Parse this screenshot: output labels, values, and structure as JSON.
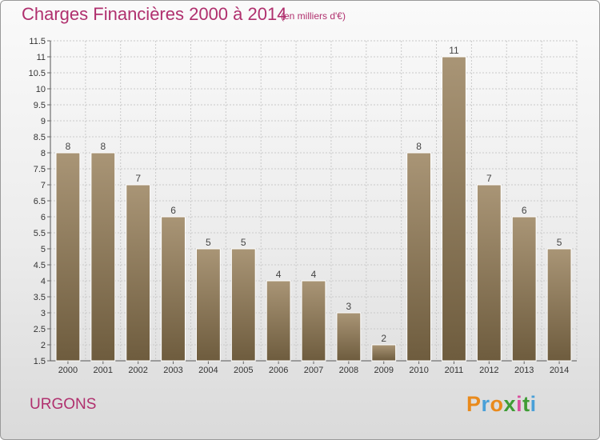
{
  "header": {
    "title": "Charges Financières 2000 à 2014",
    "subtitle": "(en milliers d'€)"
  },
  "footer": {
    "place": "URGONS",
    "logo_text": "Proxiti",
    "logo_colors": [
      "#e98a1c",
      "#4aa0d8",
      "#e98a1c",
      "#3f9c35",
      "#d94f9e",
      "#3f9c35",
      "#4aa0d8"
    ]
  },
  "colors": {
    "bar_top": "#a99576",
    "bar_bottom": "#6e5c3e",
    "grid": "#c9c9c9",
    "accent": "#b0306e"
  },
  "chart_data": {
    "type": "bar",
    "title": "Charges Financières 2000 à 2014",
    "subtitle": "(en milliers d'€)",
    "categories": [
      "2000",
      "2001",
      "2002",
      "2003",
      "2004",
      "2005",
      "2006",
      "2007",
      "2008",
      "2009",
      "2010",
      "2011",
      "2012",
      "2013",
      "2014"
    ],
    "values": [
      8,
      8,
      7,
      6,
      5,
      5,
      4,
      4,
      3,
      2,
      8,
      11,
      7,
      6,
      5
    ],
    "data_labels": [
      "8",
      "8",
      "7",
      "6",
      "5",
      "5",
      "4",
      "4",
      "3",
      "2",
      "8",
      "11",
      "7",
      "6",
      "5"
    ],
    "ylim": [
      1.5,
      11.5
    ],
    "yticks": [
      1.5,
      2,
      2.5,
      3,
      3.5,
      4,
      4.5,
      5,
      5.5,
      6,
      6.5,
      7,
      7.5,
      8,
      8.5,
      9,
      9.5,
      10,
      10.5,
      11,
      11.5
    ],
    "ytick_labels": [
      "1.5",
      "2",
      "2.5",
      "3",
      "3.5",
      "4",
      "4.5",
      "5",
      "5.5",
      "6",
      "6.5",
      "7",
      "7.5",
      "8",
      "8.5",
      "9",
      "9.5",
      "10",
      "10.5",
      "11",
      "11.5"
    ],
    "grid": true,
    "xlabel": "",
    "ylabel": ""
  }
}
